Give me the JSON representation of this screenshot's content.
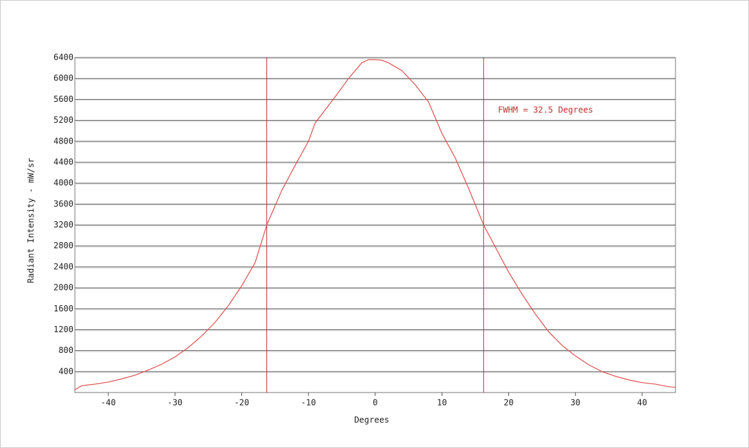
{
  "chart_data": {
    "type": "line",
    "x_label": "Degrees",
    "y_label": "Radiant Intensity - mW/sr",
    "annotation": "FWHM = 32.5 Degrees",
    "x": [
      -45,
      -44,
      -42,
      -40,
      -38,
      -36,
      -34,
      -32,
      -30,
      -28,
      -26,
      -24,
      -22,
      -20,
      -18,
      -16.25,
      -14,
      -12,
      -10,
      -9,
      -6,
      -4,
      -2,
      -1,
      0,
      1,
      2,
      4,
      6,
      8,
      10,
      12,
      14,
      16.25,
      18,
      20,
      22,
      24,
      26,
      28,
      30,
      32,
      34,
      36,
      38,
      40,
      42,
      44,
      45
    ],
    "series": [
      {
        "color": "#e05050",
        "values": [
          50,
          130,
          160,
          200,
          260,
          330,
          430,
          540,
          680,
          860,
          1080,
          1340,
          1660,
          2040,
          2480,
          3200,
          3860,
          4340,
          4800,
          5150,
          5650,
          6000,
          6300,
          6360,
          6360,
          6350,
          6300,
          6150,
          5880,
          5550,
          4950,
          4480,
          3900,
          3200,
          2780,
          2300,
          1880,
          1500,
          1160,
          900,
          700,
          530,
          400,
          310,
          240,
          190,
          160,
          110,
          100
        ]
      }
    ],
    "vlines": [
      -16.25,
      16.25
    ],
    "vline_color": "#c03030",
    "xlim": [
      -45,
      45
    ],
    "ylim": [
      0,
      6400
    ],
    "xticks": [
      -40,
      -30,
      -20,
      -10,
      0,
      10,
      20,
      30,
      40
    ],
    "yticks": [
      400,
      800,
      1200,
      1600,
      2000,
      2400,
      2800,
      3200,
      3600,
      4000,
      4400,
      4800,
      5200,
      5600,
      6000,
      6400
    ],
    "grid": true
  }
}
